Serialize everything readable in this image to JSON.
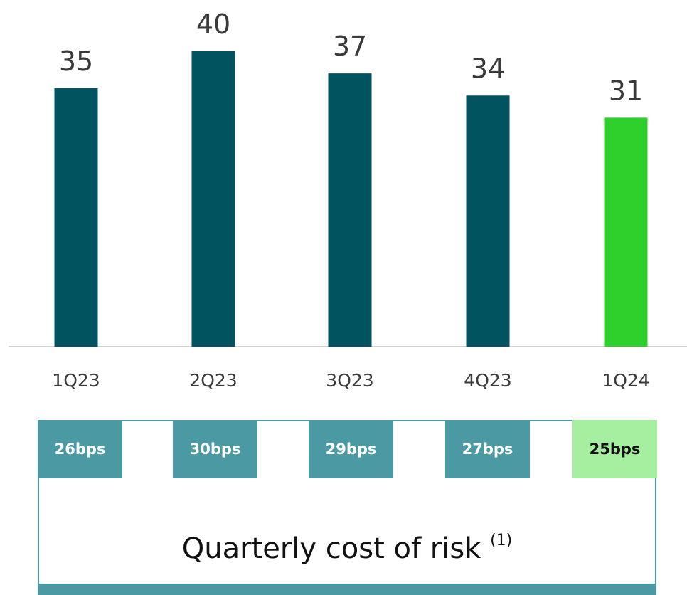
{
  "chart_data": {
    "type": "bar",
    "categories": [
      "1Q23",
      "2Q23",
      "3Q23",
      "4Q23",
      "1Q24"
    ],
    "values": [
      35,
      40,
      37,
      34,
      31
    ],
    "highlight_index": 4,
    "colors": {
      "default": "#00535f",
      "highlight": "#2ed12b"
    },
    "ylim": [
      0,
      40
    ],
    "grid": false
  },
  "cost_of_risk": {
    "title": "Quarterly cost of risk",
    "footnote": "(1)",
    "values": [
      "26bps",
      "30bps",
      "29bps",
      "27bps",
      "25bps"
    ],
    "colors": {
      "default": "#4a99a3",
      "highlight": "#a6eea0"
    }
  }
}
